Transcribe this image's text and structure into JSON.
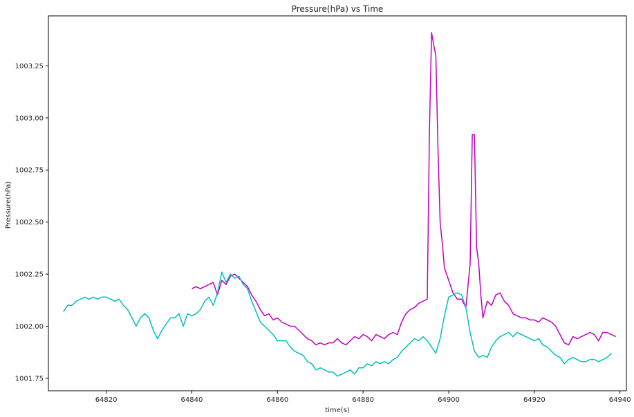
{
  "chart_data": {
    "type": "line",
    "title": "Pressure(hPa) vs Time",
    "xlabel": "time(s)",
    "ylabel": "Pressure(hPa)",
    "xlim": [
      64806.5,
      64941.5
    ],
    "ylim": [
      1001.69,
      1003.49
    ],
    "xticks": [
      64820,
      64840,
      64860,
      64880,
      64900,
      64920,
      64940
    ],
    "yticks": [
      1001.75,
      1002.0,
      1002.25,
      1002.5,
      1002.75,
      1003.0,
      1003.25
    ],
    "xtick_labels": [
      "64820",
      "64840",
      "64860",
      "64880",
      "64900",
      "64920",
      "64940"
    ],
    "ytick_labels": [
      "1001.75",
      "1002.00",
      "1002.25",
      "1002.50",
      "1002.75",
      "1003.00",
      "1003.25"
    ],
    "grid": false,
    "legend": "none",
    "series": [
      {
        "color": "#bf00bf",
        "x": [
          64840,
          64841,
          64842,
          64843,
          64844,
          64845,
          64846,
          64847,
          64848,
          64849,
          64850,
          64851,
          64852,
          64853,
          64854,
          64855,
          64856,
          64857,
          64858,
          64859,
          64860,
          64861,
          64862,
          64863,
          64864,
          64865,
          64866,
          64867,
          64868,
          64869,
          64870,
          64871,
          64872,
          64873,
          64874,
          64875,
          64876,
          64877,
          64878,
          64879,
          64880,
          64881,
          64882,
          64883,
          64884,
          64885,
          64886,
          64887,
          64888,
          64889,
          64890,
          64891,
          64892,
          64893,
          64894,
          64895,
          64895.5,
          64896,
          64896.5,
          64897,
          64897.5,
          64898,
          64898.5,
          64899,
          64900,
          64901,
          64902,
          64903,
          64904,
          64905,
          64905.5,
          64906,
          64906.5,
          64907,
          64907.5,
          64908,
          64909,
          64910,
          64911,
          64912,
          64913,
          64914,
          64915,
          64916,
          64917,
          64918,
          64919,
          64920,
          64921,
          64922,
          64923,
          64924,
          64925,
          64926,
          64927,
          64928,
          64929,
          64930,
          64931,
          64932,
          64933,
          64934,
          64935,
          64936,
          64937,
          64938,
          64939
        ],
        "y": [
          1002.18,
          1002.19,
          1002.18,
          1002.19,
          1002.2,
          1002.21,
          1002.15,
          1002.22,
          1002.2,
          1002.24,
          1002.25,
          1002.23,
          1002.21,
          1002.19,
          1002.15,
          1002.12,
          1002.08,
          1002.05,
          1002.06,
          1002.03,
          1002.04,
          1002.02,
          1002.01,
          1002.0,
          1002.0,
          1001.98,
          1001.96,
          1001.94,
          1001.93,
          1001.91,
          1001.92,
          1001.91,
          1001.92,
          1001.92,
          1001.94,
          1001.92,
          1001.91,
          1001.93,
          1001.95,
          1001.94,
          1001.96,
          1001.95,
          1001.93,
          1001.96,
          1001.95,
          1001.94,
          1001.96,
          1001.97,
          1001.96,
          1002.02,
          1002.06,
          1002.08,
          1002.09,
          1002.11,
          1002.12,
          1002.13,
          1002.93,
          1003.41,
          1003.35,
          1003.3,
          1002.85,
          1002.5,
          1002.4,
          1002.28,
          1002.22,
          1002.16,
          1002.13,
          1002.13,
          1002.09,
          1002.3,
          1002.92,
          1002.92,
          1002.38,
          1002.3,
          1002.15,
          1002.04,
          1002.12,
          1002.1,
          1002.15,
          1002.16,
          1002.12,
          1002.1,
          1002.06,
          1002.05,
          1002.04,
          1002.04,
          1002.03,
          1002.03,
          1002.02,
          1002.04,
          1002.03,
          1002.02,
          1002.0,
          1001.96,
          1001.92,
          1001.91,
          1001.95,
          1001.94,
          1001.95,
          1001.96,
          1001.97,
          1001.96,
          1001.93,
          1001.97,
          1001.97,
          1001.96,
          1001.95
        ]
      },
      {
        "color": "#00bfbf",
        "x": [
          64810,
          64811,
          64812,
          64813,
          64814,
          64815,
          64816,
          64817,
          64818,
          64819,
          64820,
          64821,
          64822,
          64823,
          64824,
          64825,
          64826,
          64827,
          64828,
          64829,
          64830,
          64831,
          64832,
          64833,
          64834,
          64835,
          64836,
          64837,
          64838,
          64839,
          64840,
          64841,
          64842,
          64843,
          64844,
          64845,
          64846,
          64847,
          64848,
          64849,
          64850,
          64851,
          64852,
          64853,
          64854,
          64855,
          64856,
          64857,
          64858,
          64859,
          64860,
          64861,
          64862,
          64863,
          64864,
          64865,
          64866,
          64867,
          64868,
          64869,
          64870,
          64871,
          64872,
          64873,
          64874,
          64875,
          64876,
          64877,
          64878,
          64879,
          64880,
          64881,
          64882,
          64883,
          64884,
          64885,
          64886,
          64887,
          64888,
          64889,
          64890,
          64891,
          64892,
          64893,
          64894,
          64895,
          64896,
          64897,
          64898,
          64899,
          64900,
          64901,
          64902,
          64903,
          64904,
          64905,
          64906,
          64907,
          64908,
          64909,
          64910,
          64911,
          64912,
          64913,
          64914,
          64915,
          64916,
          64917,
          64918,
          64919,
          64920,
          64921,
          64922,
          64923,
          64924,
          64925,
          64926,
          64927,
          64928,
          64929,
          64930,
          64931,
          64932,
          64933,
          64934,
          64935,
          64936,
          64937,
          64938
        ],
        "y": [
          1002.07,
          1002.1,
          1002.1,
          1002.12,
          1002.13,
          1002.14,
          1002.13,
          1002.14,
          1002.13,
          1002.14,
          1002.14,
          1002.13,
          1002.12,
          1002.13,
          1002.1,
          1002.08,
          1002.04,
          1002.0,
          1002.04,
          1002.06,
          1002.04,
          1001.98,
          1001.94,
          1001.98,
          1002.01,
          1002.04,
          1002.04,
          1002.06,
          1002.0,
          1002.06,
          1002.05,
          1002.06,
          1002.08,
          1002.12,
          1002.14,
          1002.1,
          1002.16,
          1002.26,
          1002.21,
          1002.25,
          1002.23,
          1002.24,
          1002.2,
          1002.18,
          1002.12,
          1002.07,
          1002.02,
          1002.0,
          1001.98,
          1001.96,
          1001.93,
          1001.93,
          1001.93,
          1001.9,
          1001.88,
          1001.87,
          1001.86,
          1001.83,
          1001.82,
          1001.79,
          1001.8,
          1001.79,
          1001.78,
          1001.78,
          1001.76,
          1001.77,
          1001.78,
          1001.79,
          1001.77,
          1001.8,
          1001.8,
          1001.82,
          1001.81,
          1001.83,
          1001.82,
          1001.83,
          1001.82,
          1001.84,
          1001.85,
          1001.88,
          1001.9,
          1001.92,
          1001.94,
          1001.93,
          1001.95,
          1001.93,
          1001.9,
          1001.87,
          1001.94,
          1002.05,
          1002.14,
          1002.15,
          1002.16,
          1002.15,
          1002.09,
          1001.97,
          1001.88,
          1001.85,
          1001.86,
          1001.85,
          1001.9,
          1001.93,
          1001.95,
          1001.96,
          1001.97,
          1001.95,
          1001.97,
          1001.96,
          1001.95,
          1001.94,
          1001.93,
          1001.94,
          1001.91,
          1001.9,
          1001.88,
          1001.86,
          1001.85,
          1001.82,
          1001.84,
          1001.85,
          1001.84,
          1001.83,
          1001.83,
          1001.84,
          1001.84,
          1001.83,
          1001.84,
          1001.85,
          1001.87
        ]
      }
    ]
  }
}
